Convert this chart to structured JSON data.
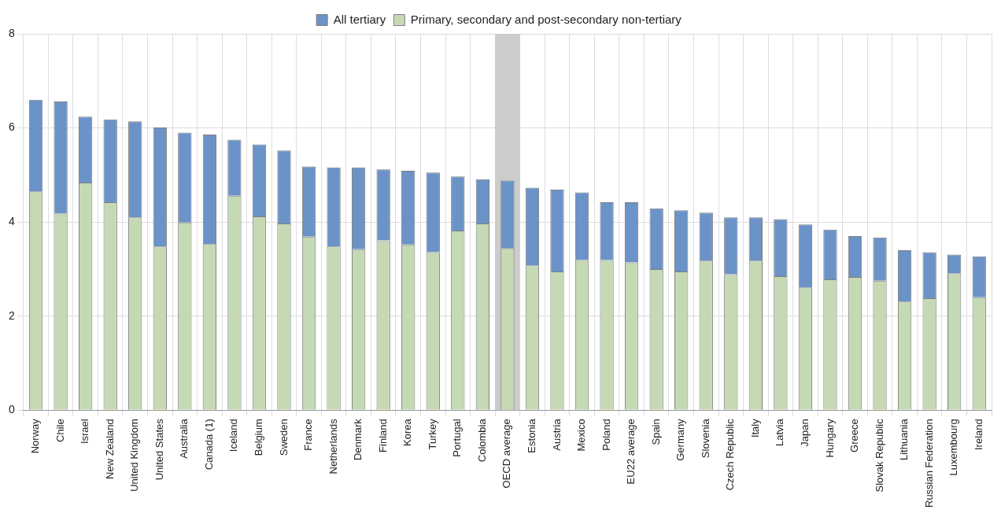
{
  "chart_data": {
    "type": "bar",
    "stacked": true,
    "categories": [
      "Norway",
      "Chile",
      "Israel",
      "New Zealand",
      "United Kingdom",
      "United States",
      "Australia",
      "Canada (1)",
      "Iceland",
      "Belgium",
      "Sweden",
      "France",
      "Netherlands",
      "Denmark",
      "Finland",
      "Korea",
      "Turkey",
      "Portugal",
      "Colombia",
      "OECD average",
      "Estonia",
      "Austria",
      "Mexico",
      "Poland",
      "EU22 average",
      "Spain",
      "Germany",
      "Slovenia",
      "Czech Republic",
      "Italy",
      "Latvia",
      "Japan",
      "Hungary",
      "Greece",
      "Slovak Republic",
      "Lithuania",
      "Russian Federation",
      "Luxembourg",
      "Ireland"
    ],
    "series": [
      {
        "name": "Primary, secondary and post-secondary non-tertiary",
        "color": "#c5d9b5",
        "values": [
          4.65,
          4.18,
          4.84,
          4.42,
          4.1,
          3.48,
          3.99,
          3.53,
          4.56,
          4.12,
          3.97,
          3.69,
          3.48,
          3.42,
          3.61,
          3.52,
          3.36,
          3.82,
          3.97,
          3.44,
          3.08,
          2.95,
          3.19,
          3.19,
          3.14,
          3.0,
          2.95,
          3.18,
          2.89,
          3.18,
          2.85,
          2.61,
          2.78,
          2.83,
          2.75,
          2.31,
          2.38,
          2.91,
          2.4
        ]
      },
      {
        "name": "All tertiary",
        "color": "#6b93c8",
        "values": [
          1.95,
          2.38,
          1.4,
          1.76,
          2.04,
          2.53,
          1.91,
          2.33,
          1.19,
          1.53,
          1.55,
          1.49,
          1.68,
          1.74,
          1.51,
          1.57,
          1.69,
          1.15,
          0.94,
          1.44,
          1.65,
          1.74,
          1.44,
          1.23,
          1.28,
          1.29,
          1.3,
          1.02,
          1.21,
          0.92,
          1.21,
          1.34,
          1.06,
          0.87,
          0.92,
          1.09,
          0.98,
          0.4,
          0.87
        ]
      }
    ],
    "ylim": [
      0,
      8
    ],
    "yticks": [
      0,
      2,
      4,
      6,
      8
    ],
    "grid": true,
    "legend": "top",
    "bands": [
      {
        "axis": "x",
        "from": "OECD average",
        "to": "OECD average",
        "color": "#cccccc"
      }
    ]
  }
}
